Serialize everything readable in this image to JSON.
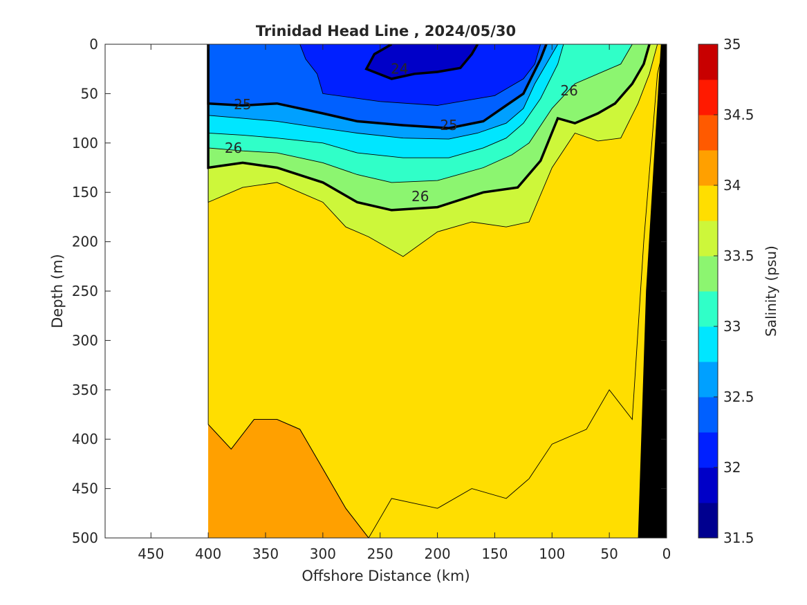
{
  "chart_data": {
    "type": "contour",
    "title": "Trinidad Head Line , 2024/05/30",
    "xlabel": "Offshore Distance (km)",
    "ylabel": "Depth (m)",
    "colorbar_label": "Salinity (psu)",
    "xlim": [
      490,
      0
    ],
    "ylim": [
      0,
      500
    ],
    "x_reversed": true,
    "y_reversed": true,
    "xticks": [
      "450",
      "400",
      "350",
      "300",
      "250",
      "200",
      "150",
      "100",
      "50",
      "0"
    ],
    "yticks": [
      "0",
      "50",
      "100",
      "150",
      "200",
      "250",
      "300",
      "350",
      "400",
      "450",
      "500"
    ],
    "colorbar_ticks": [
      "31.5",
      "32",
      "32.5",
      "33",
      "33.5",
      "34",
      "34.5",
      "35"
    ],
    "colorbar_range": [
      31.5,
      35
    ],
    "colorbar_step": 0.25,
    "colorbar_colors": [
      "#00008f",
      "#0000c8",
      "#0020ff",
      "#0060ff",
      "#00a0ff",
      "#00e6ff",
      "#30ffc8",
      "#8cf570",
      "#cdf73a",
      "#ffde00",
      "#ffa000",
      "#ff5a00",
      "#ff1a00",
      "#c80000"
    ],
    "data_extent_km": [
      400,
      0
    ],
    "sigma_labels": [
      {
        "text": "24",
        "x": 233,
        "y": 25
      },
      {
        "text": "25",
        "x": 370,
        "y": 61
      },
      {
        "text": "25",
        "x": 190,
        "y": 82
      },
      {
        "text": "26",
        "x": 85,
        "y": 47
      },
      {
        "text": "26",
        "x": 378,
        "y": 105
      },
      {
        "text": "26",
        "x": 215,
        "y": 154
      }
    ],
    "salinity_bands": [
      {
        "value": 32.0,
        "color": "#0000c8",
        "boundary": [
          [
            240,
            0
          ],
          [
            255,
            10
          ],
          [
            262,
            25
          ],
          [
            240,
            35
          ],
          [
            220,
            30
          ],
          [
            200,
            28
          ],
          [
            180,
            24
          ],
          [
            170,
            10
          ],
          [
            165,
            0
          ]
        ]
      },
      {
        "value": 32.25,
        "color": "#0020ff",
        "boundary": [
          [
            320,
            0
          ],
          [
            315,
            15
          ],
          [
            305,
            30
          ],
          [
            300,
            50
          ],
          [
            250,
            58
          ],
          [
            200,
            62
          ],
          [
            150,
            52
          ],
          [
            125,
            35
          ],
          [
            115,
            20
          ],
          [
            110,
            0
          ]
        ]
      },
      {
        "value": 32.5,
        "color": "#0060ff",
        "boundary": [
          [
            400,
            0
          ],
          [
            400,
            60
          ],
          [
            370,
            62
          ],
          [
            340,
            60
          ],
          [
            300,
            70
          ],
          [
            270,
            78
          ],
          [
            230,
            82
          ],
          [
            190,
            85
          ],
          [
            160,
            78
          ],
          [
            140,
            62
          ],
          [
            125,
            50
          ],
          [
            110,
            15
          ],
          [
            105,
            0
          ]
        ]
      },
      {
        "value": 32.75,
        "color": "#00a0ff",
        "boundary": [
          [
            400,
            0
          ],
          [
            400,
            72
          ],
          [
            370,
            75
          ],
          [
            340,
            78
          ],
          [
            300,
            85
          ],
          [
            270,
            90
          ],
          [
            230,
            95
          ],
          [
            190,
            96
          ],
          [
            165,
            90
          ],
          [
            140,
            80
          ],
          [
            125,
            65
          ],
          [
            115,
            40
          ],
          [
            100,
            10
          ],
          [
            95,
            0
          ]
        ]
      },
      {
        "value": 33.0,
        "color": "#00e6ff",
        "boundary": [
          [
            400,
            0
          ],
          [
            400,
            90
          ],
          [
            370,
            92
          ],
          [
            340,
            95
          ],
          [
            300,
            100
          ],
          [
            270,
            110
          ],
          [
            230,
            115
          ],
          [
            190,
            115
          ],
          [
            160,
            105
          ],
          [
            140,
            95
          ],
          [
            125,
            80
          ],
          [
            110,
            55
          ],
          [
            95,
            20
          ],
          [
            90,
            0
          ]
        ]
      },
      {
        "value": 33.25,
        "color": "#30ffc8",
        "boundary": [
          [
            400,
            0
          ],
          [
            400,
            105
          ],
          [
            370,
            108
          ],
          [
            340,
            110
          ],
          [
            300,
            120
          ],
          [
            270,
            132
          ],
          [
            240,
            140
          ],
          [
            200,
            138
          ],
          [
            160,
            125
          ],
          [
            135,
            112
          ],
          [
            120,
            100
          ],
          [
            100,
            65
          ],
          [
            80,
            40
          ],
          [
            60,
            30
          ],
          [
            40,
            20
          ],
          [
            30,
            0
          ]
        ]
      },
      {
        "value": 33.5,
        "color": "#8cf570",
        "boundary": [
          [
            400,
            0
          ],
          [
            400,
            125
          ],
          [
            370,
            120
          ],
          [
            340,
            125
          ],
          [
            300,
            140
          ],
          [
            270,
            160
          ],
          [
            240,
            168
          ],
          [
            200,
            165
          ],
          [
            160,
            150
          ],
          [
            130,
            145
          ],
          [
            110,
            118
          ],
          [
            95,
            75
          ],
          [
            80,
            80
          ],
          [
            60,
            70
          ],
          [
            45,
            60
          ],
          [
            30,
            40
          ],
          [
            20,
            20
          ],
          [
            15,
            0
          ]
        ]
      },
      {
        "value": 33.75,
        "color": "#cdf73a",
        "boundary": [
          [
            400,
            0
          ],
          [
            400,
            160
          ],
          [
            370,
            145
          ],
          [
            340,
            140
          ],
          [
            300,
            160
          ],
          [
            280,
            185
          ],
          [
            260,
            195
          ],
          [
            230,
            215
          ],
          [
            200,
            190
          ],
          [
            170,
            180
          ],
          [
            140,
            185
          ],
          [
            120,
            180
          ],
          [
            100,
            125
          ],
          [
            80,
            90
          ],
          [
            60,
            98
          ],
          [
            40,
            95
          ],
          [
            25,
            60
          ],
          [
            15,
            30
          ],
          [
            8,
            0
          ]
        ]
      },
      {
        "value": 34.0,
        "color": "#ffde00",
        "boundary": [
          [
            400,
            0
          ],
          [
            400,
            385
          ],
          [
            380,
            410
          ],
          [
            360,
            380
          ],
          [
            340,
            380
          ],
          [
            320,
            390
          ],
          [
            300,
            430
          ],
          [
            280,
            470
          ],
          [
            260,
            500
          ],
          [
            240,
            460
          ],
          [
            200,
            470
          ],
          [
            170,
            450
          ],
          [
            140,
            460
          ],
          [
            120,
            440
          ],
          [
            100,
            405
          ],
          [
            70,
            390
          ],
          [
            50,
            350
          ],
          [
            30,
            380
          ],
          [
            20,
            200
          ],
          [
            8,
            30
          ],
          [
            2,
            0
          ]
        ]
      },
      {
        "value": 34.25,
        "color": "#ffa000",
        "boundary": [
          [
            400,
            385
          ],
          [
            380,
            410
          ],
          [
            360,
            380
          ],
          [
            340,
            380
          ],
          [
            320,
            390
          ],
          [
            300,
            430
          ],
          [
            280,
            470
          ],
          [
            260,
            500
          ],
          [
            400,
            500
          ]
        ]
      }
    ],
    "sea_floor": [
      [
        0,
        0
      ],
      [
        5,
        0
      ],
      [
        18,
        250
      ],
      [
        25,
        500
      ],
      [
        0,
        500
      ]
    ]
  }
}
